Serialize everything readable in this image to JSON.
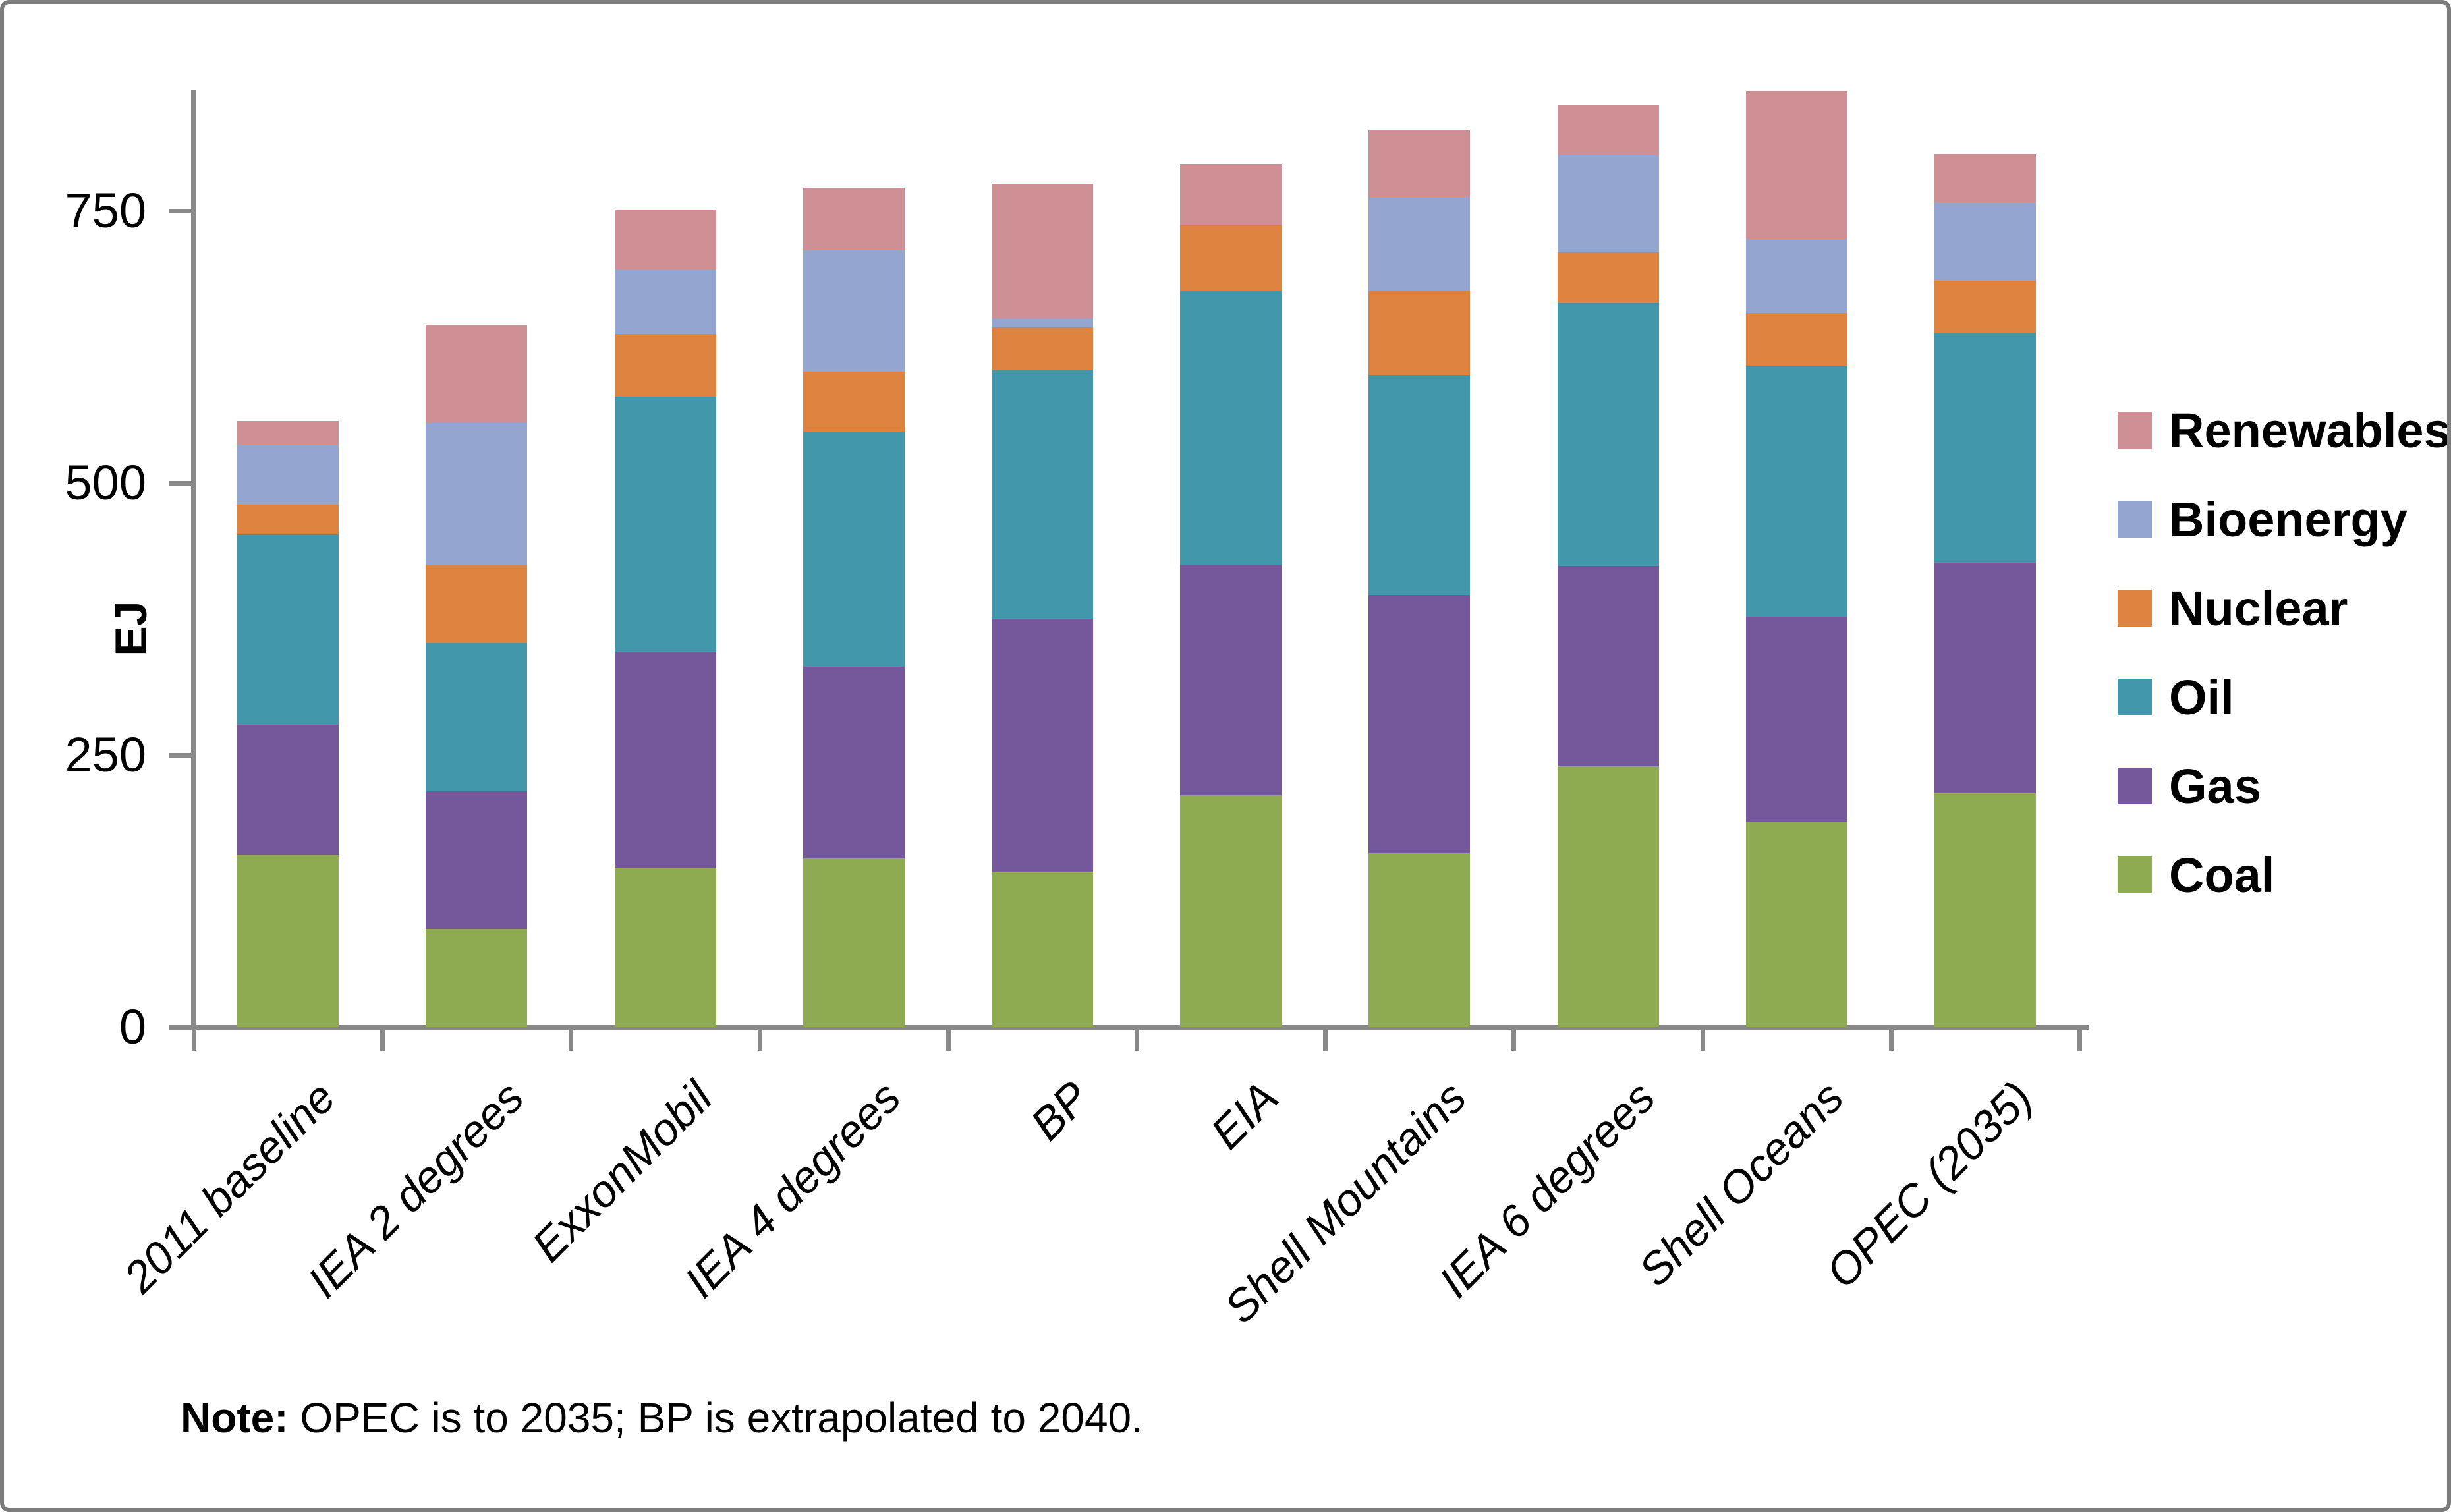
{
  "figure": {
    "note_label": "Note:",
    "note_text": " OPEC is to 2035; BP is extrapolated to 2040."
  },
  "chart_data": {
    "type": "bar",
    "stacked": true,
    "title": "",
    "xlabel": "",
    "ylabel": "EJ",
    "ylim": [
      0,
      900
    ],
    "yticks": [
      0,
      250,
      500,
      750
    ],
    "grid": false,
    "legend_position": "right",
    "legend_order_top_to_bottom": [
      "Renewables",
      "Bioenergy",
      "Nuclear",
      "Oil",
      "Gas",
      "Coal"
    ],
    "axis_color": "#898989",
    "categories": [
      "2011 baseline",
      "IEA 2 degrees",
      "ExxonMobil",
      "IEA 4 degrees",
      "BP",
      "EIA",
      "Shell Mountains",
      "IEA 6 degrees",
      "Shell Oceans",
      "OPEC (2035)"
    ],
    "series": [
      {
        "name": "Coal",
        "color": "#8FAB52",
        "values": [
          158,
          90,
          146,
          155,
          142,
          213,
          160,
          240,
          189,
          215
        ]
      },
      {
        "name": "Gas",
        "color": "#74589B",
        "values": [
          120,
          127,
          199,
          176,
          233,
          212,
          237,
          184,
          188,
          212
        ]
      },
      {
        "name": "Oil",
        "color": "#4397AB",
        "values": [
          175,
          136,
          234,
          216,
          229,
          251,
          202,
          241,
          230,
          211
        ]
      },
      {
        "name": "Nuclear",
        "color": "#DD833F",
        "values": [
          27,
          72,
          58,
          55,
          39,
          61,
          77,
          47,
          49,
          48
        ]
      },
      {
        "name": "Bioenergy",
        "color": "#94A5D0",
        "values": [
          55,
          130,
          59,
          112,
          8,
          0,
          87,
          89,
          68,
          72
        ]
      },
      {
        "name": "Renewables",
        "color": "#CE9095",
        "values": [
          22,
          90,
          55,
          57,
          124,
          56,
          61,
          46,
          136,
          44
        ]
      }
    ],
    "totals": [
      557,
      645,
      751,
      771,
      775,
      793,
      824,
      847,
      860,
      802
    ]
  }
}
